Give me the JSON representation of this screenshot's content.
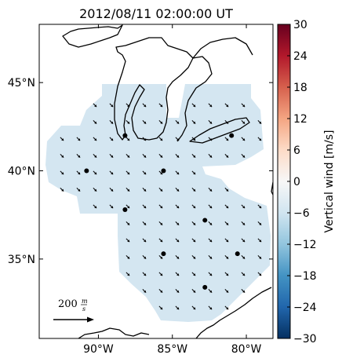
{
  "map": {
    "title": "2012/08/11 02:00:00 UT",
    "lat_range": [
      30.5,
      48.3
    ],
    "lon_range": [
      -94,
      -78.2
    ],
    "lat_ticks": [
      {
        "value": 45,
        "label": "45°N"
      },
      {
        "value": 40,
        "label": "40°N"
      },
      {
        "value": 35,
        "label": "35°N"
      }
    ],
    "lon_ticks": [
      {
        "value": -90,
        "label": "90°W"
      },
      {
        "value": -85,
        "label": "85°W"
      },
      {
        "value": -80,
        "label": "80°W"
      }
    ],
    "field_color": "#d4e6f1",
    "land_outline_color": "#000000",
    "stations": [
      {
        "lon": -88.2,
        "lat": 42.0
      },
      {
        "lon": -81.0,
        "lat": 42.0
      },
      {
        "lon": -90.8,
        "lat": 40.0
      },
      {
        "lon": -85.6,
        "lat": 40.0
      },
      {
        "lon": -88.2,
        "lat": 37.8
      },
      {
        "lon": -82.8,
        "lat": 37.2
      },
      {
        "lon": -85.6,
        "lat": 35.3
      },
      {
        "lon": -80.6,
        "lat": 35.3
      },
      {
        "lon": -82.8,
        "lat": 33.4
      }
    ],
    "wind_vector_direction_deg": 135,
    "reference_arrow": {
      "label": "200",
      "unit_numerator": "m",
      "unit_denominator": "s",
      "value": 200
    }
  },
  "colorbar": {
    "label": "Vertical wind [m/s]",
    "min": -30,
    "max": 30,
    "ticks": [
      "30",
      "24",
      "18",
      "12",
      "6",
      "0",
      "−6",
      "−12",
      "−18",
      "−24",
      "−30"
    ],
    "colormap": [
      "#67001f",
      "#b2182b",
      "#d6604d",
      "#f4a582",
      "#fddbc7",
      "#f7f7f7",
      "#d1e5f0",
      "#92c5de",
      "#4393c3",
      "#2166ac",
      "#053061"
    ]
  }
}
